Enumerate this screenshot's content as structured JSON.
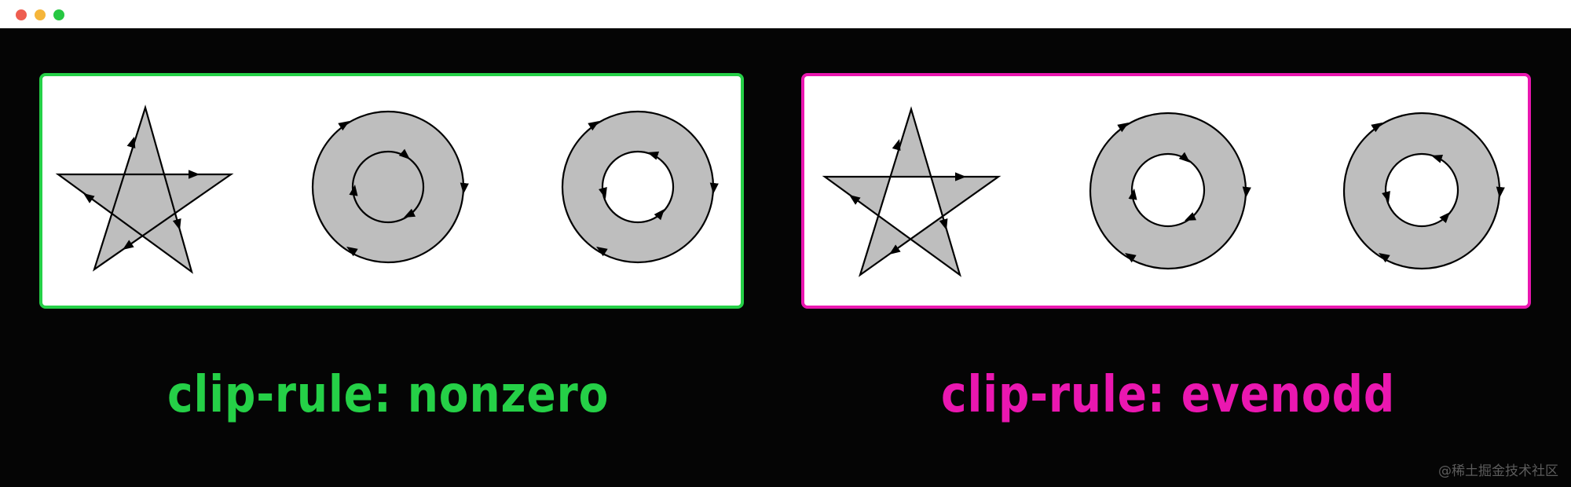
{
  "window": {
    "controls": [
      "close-dot",
      "minimize-dot",
      "zoom-dot"
    ]
  },
  "colors": {
    "close": "#ee5d50",
    "minimize": "#f5b53a",
    "zoom": "#26c742",
    "nonzero_accent": "#25d047",
    "evenodd_accent": "#ea17b0",
    "shape_fill": "#bebebe",
    "background": "#050505"
  },
  "panels": {
    "nonzero": {
      "caption": "clip-rule: nonzero",
      "shapes": [
        "star-icon",
        "ring-same-direction-icon",
        "ring-opposite-direction-icon"
      ]
    },
    "evenodd": {
      "caption": "clip-rule: evenodd",
      "shapes": [
        "star-icon",
        "ring-same-direction-icon",
        "ring-opposite-direction-icon"
      ]
    }
  },
  "watermark": "@稀土掘金技术社区"
}
